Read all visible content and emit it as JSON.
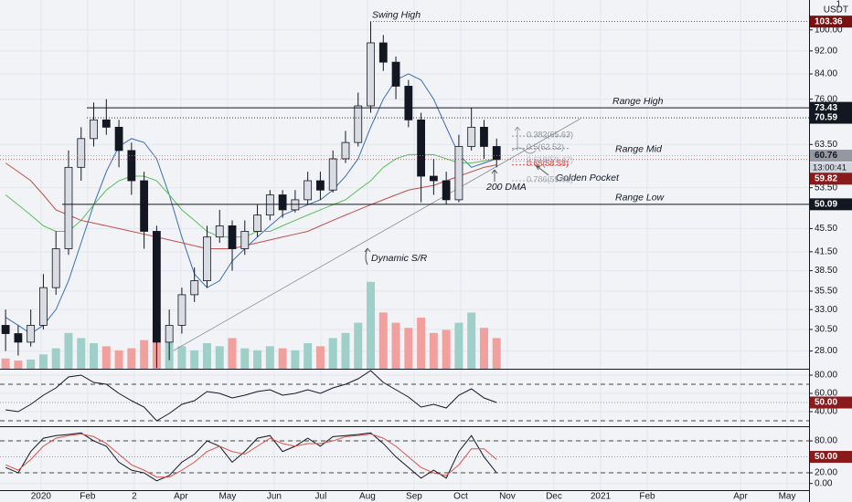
{
  "chart_data": [
    {
      "type": "candlestick",
      "currency": "USDT",
      "ratio": "1",
      "x": [
        -0.76,
        -0.49,
        -0.22,
        0.05,
        0.32,
        0.59,
        0.86,
        1.13,
        1.4,
        1.67,
        1.94,
        2.21,
        2.48,
        2.75,
        3.02,
        3.29,
        3.56,
        3.83,
        4.1,
        4.37,
        4.64,
        4.91,
        5.18,
        5.45,
        5.72,
        5.99,
        6.26,
        6.53,
        6.8,
        7.07,
        7.34,
        7.61,
        7.88,
        8.15,
        8.42,
        8.69,
        8.96,
        9.23,
        9.5,
        9.77
      ],
      "open": [
        31,
        30,
        29,
        31,
        36,
        42,
        58,
        65,
        70,
        68,
        62,
        55,
        45,
        29,
        31,
        35,
        37,
        44,
        46,
        42,
        45,
        48,
        52,
        49,
        51,
        55,
        53,
        60,
        64,
        74,
        95,
        88,
        80,
        70,
        56,
        55,
        51,
        63,
        68,
        63
      ],
      "high": [
        33,
        31,
        33,
        38,
        45,
        62,
        68,
        75,
        76,
        70,
        64,
        57,
        46,
        33,
        36,
        39,
        46,
        49,
        47,
        47,
        50,
        53,
        53,
        53,
        57,
        57,
        62,
        67,
        78,
        103.36,
        98,
        90,
        82,
        72,
        60,
        57,
        66,
        73.43,
        70,
        65
      ],
      "low": [
        28,
        27.5,
        28.5,
        30.5,
        35,
        41,
        55,
        63,
        66,
        58,
        52,
        42,
        26.2,
        27,
        30,
        34,
        36,
        43,
        38.5,
        41,
        44,
        47,
        47.5,
        48.5,
        50,
        51,
        52.5,
        59,
        63,
        72,
        85,
        76,
        68,
        50.5,
        52,
        50.09,
        50.5,
        62,
        60,
        58
      ],
      "close": [
        30,
        29,
        31,
        36,
        42,
        58,
        65,
        70,
        68,
        62,
        55,
        45,
        29,
        31,
        35,
        37,
        44,
        46,
        42,
        45,
        48,
        52,
        49,
        51,
        55,
        53,
        60,
        64,
        74,
        95,
        88,
        80,
        70,
        56,
        55,
        51,
        63,
        68,
        63,
        59.82
      ],
      "candle_up_color": "#d9dce3",
      "candle_down_color": "#131722",
      "wick_color": "#131722",
      "volume": [
        10,
        8,
        9,
        14,
        20,
        35,
        30,
        25,
        22,
        18,
        20,
        28,
        45,
        30,
        22,
        18,
        25,
        22,
        30,
        20,
        18,
        22,
        20,
        18,
        25,
        22,
        30,
        35,
        45,
        85,
        55,
        45,
        40,
        50,
        35,
        38,
        45,
        55,
        40,
        30
      ],
      "volume_lim": [
        0,
        100
      ],
      "volume_up_color": "#9fcfc9",
      "volume_down_color": "#f2a09e",
      "moving_averages": [
        {
          "color": "#3d6fb0",
          "values": [
            32,
            31,
            30,
            31,
            33,
            37,
            43,
            50,
            57,
            63,
            65,
            64,
            60,
            52,
            44,
            38,
            36,
            37,
            40,
            42,
            44,
            46,
            48,
            49,
            50,
            51,
            53,
            56,
            60,
            68,
            76,
            82,
            84,
            82,
            76,
            68,
            61,
            58,
            59,
            60
          ]
        },
        {
          "color": "#5cbf5c",
          "values": [
            52,
            50,
            48,
            46,
            45,
            45,
            47,
            50,
            53,
            55,
            56,
            56,
            55,
            52,
            49,
            47,
            45,
            44,
            44,
            44,
            45,
            45,
            46,
            47,
            48,
            49,
            50,
            51,
            53,
            55,
            58,
            60,
            61,
            61,
            61,
            60,
            59,
            59,
            59.5,
            60
          ]
        },
        {
          "color": "#c0504d",
          "values": [
            59,
            57,
            55,
            52,
            49,
            48,
            47,
            46.5,
            46,
            45.5,
            45,
            44.5,
            44,
            43.5,
            43,
            42.5,
            42,
            42,
            42,
            42.5,
            43,
            43.5,
            44,
            44.5,
            45,
            46,
            47,
            48,
            49,
            50,
            51,
            52,
            53,
            53.5,
            54,
            55,
            56,
            57,
            58,
            58.58
          ]
        }
      ],
      "log_scale": true,
      "grid": true,
      "xlim": [
        -0.88,
        16.47
      ],
      "xticks": [
        {
          "value": 0,
          "label": "2020"
        },
        {
          "value": 1,
          "label": "Feb"
        },
        {
          "value": 2,
          "label": "2"
        },
        {
          "value": 3,
          "label": "Apr"
        },
        {
          "value": 4,
          "label": "May"
        },
        {
          "value": 5,
          "label": "Jun"
        },
        {
          "value": 6,
          "label": "Jul"
        },
        {
          "value": 7,
          "label": "Aug"
        },
        {
          "value": 8,
          "label": "Sep"
        },
        {
          "value": 9,
          "label": "Oct"
        },
        {
          "value": 10,
          "label": "Nov"
        },
        {
          "value": 11,
          "label": "Dec"
        },
        {
          "value": 12,
          "label": "2021"
        },
        {
          "value": 13,
          "label": "Feb"
        },
        {
          "value": 15,
          "label": "Apr"
        },
        {
          "value": 16,
          "label": "May"
        }
      ],
      "ylim": [
        26.1,
        112.6
      ],
      "yticks": [
        {
          "value": 100,
          "label": "100.00"
        },
        {
          "value": 92,
          "label": "92.00"
        },
        {
          "value": 84,
          "label": "84.00"
        },
        {
          "value": 76,
          "label": "76.00"
        },
        {
          "value": 63.5,
          "label": "63.50"
        },
        {
          "value": 53.5,
          "label": "53.50"
        },
        {
          "value": 45.5,
          "label": "45.50"
        },
        {
          "value": 41.5,
          "label": "41.50"
        },
        {
          "value": 38.5,
          "label": "38.50"
        },
        {
          "value": 35.5,
          "label": "35.50"
        },
        {
          "value": 33,
          "label": "33.00"
        },
        {
          "value": 30.5,
          "label": "30.50"
        },
        {
          "value": 28,
          "label": "28.00"
        }
      ],
      "levels": [
        {
          "text": "Swing High",
          "value": 103.36,
          "style": "dotted",
          "color": "#7a1010"
        },
        {
          "text": "Range High",
          "value": 73.43,
          "style": "solid",
          "color": "#131722"
        },
        {
          "value": 70.59,
          "style": "dotted",
          "color": "#131722"
        },
        {
          "text": "Range Mid",
          "value": 60.76,
          "style": "dotted",
          "color": "#9598a1"
        },
        {
          "text": "Range Low",
          "value": 50.09,
          "style": "solid",
          "color": "#131722"
        }
      ],
      "last_price": {
        "value": 59.82,
        "countdown": "13:00:41",
        "color": "#8b1a1a"
      },
      "fib": [
        {
          "label": "0.382(65.63)",
          "value": 65.63,
          "color": "#8f939c"
        },
        {
          "label": "0.5(62.52)",
          "value": 62.52,
          "color": "#8f939c"
        },
        {
          "label": "0.618(59.42)",
          "value": 59.42,
          "color": "#b8bbc2"
        },
        {
          "label": "0.65(58.58)",
          "value": 58.58,
          "color": "#d9534f"
        },
        {
          "label": "0.786(55.01)",
          "value": 55.01,
          "color": "#a6a9b0"
        }
      ],
      "annotations": [
        "Golden Pocket",
        "200 DMA",
        "Dynamic S/R"
      ]
    },
    {
      "type": "line",
      "series": [
        {
          "color": "#131722",
          "values": [
            42,
            40,
            48,
            58,
            66,
            78,
            80,
            72,
            70,
            60,
            52,
            45,
            30,
            38,
            48,
            52,
            62,
            60,
            55,
            58,
            62,
            64,
            58,
            60,
            64,
            60,
            66,
            70,
            76,
            85,
            72,
            64,
            56,
            45,
            48,
            44,
            58,
            65,
            55,
            50
          ]
        }
      ],
      "ylim": [
        24,
        86
      ],
      "yticks": [
        {
          "value": 80,
          "label": "80.00"
        },
        {
          "value": 60,
          "label": "60.00"
        },
        {
          "value": 40,
          "label": "40.00"
        }
      ],
      "bands": [
        70,
        30
      ],
      "midline": 50,
      "marker": {
        "value": 50,
        "label": "50.00",
        "color": "#8b1a1a"
      }
    },
    {
      "type": "line",
      "series": [
        {
          "color": "#131722",
          "values": [
            30,
            20,
            60,
            85,
            90,
            92,
            95,
            80,
            70,
            40,
            25,
            20,
            5,
            15,
            40,
            55,
            80,
            70,
            40,
            60,
            85,
            90,
            60,
            70,
            85,
            70,
            88,
            90,
            92,
            95,
            75,
            50,
            30,
            10,
            25,
            10,
            60,
            90,
            50,
            20
          ]
        },
        {
          "color": "#d9534f",
          "values": [
            35,
            25,
            45,
            70,
            85,
            90,
            93,
            88,
            75,
            55,
            35,
            25,
            12,
            12,
            25,
            40,
            60,
            70,
            60,
            55,
            70,
            85,
            75,
            70,
            75,
            75,
            80,
            88,
            90,
            93,
            85,
            70,
            50,
            30,
            20,
            15,
            35,
            65,
            65,
            45
          ]
        }
      ],
      "ylim": [
        -12.5,
        105.8
      ],
      "yticks": [
        {
          "value": 80,
          "label": "80.00"
        },
        {
          "value": 20,
          "label": "20.00"
        },
        {
          "value": 0,
          "label": "0.00"
        }
      ],
      "bands": [
        80,
        20
      ],
      "midline": 50,
      "marker": {
        "value": 50,
        "label": "50.00",
        "color": "#8b1a1a"
      }
    }
  ]
}
